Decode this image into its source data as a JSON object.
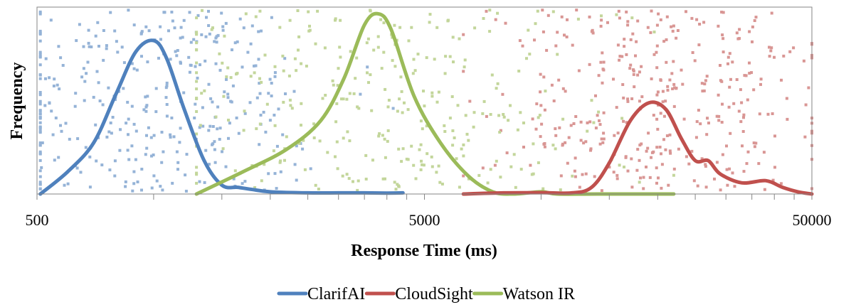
{
  "chart_data": {
    "type": "scatter",
    "xlabel": "Response Time (ms)",
    "ylabel": "Frequency",
    "x_scale": "log",
    "xlim": [
      500,
      50000
    ],
    "x_ticks": [
      500,
      5000,
      50000
    ],
    "x_tick_labels": [
      "500",
      "5000",
      "50000"
    ],
    "grid": false,
    "legend_position": "bottom-center",
    "series": [
      {
        "name": "ClarifAI",
        "color": "#4f81bd",
        "point_color": "#95b3d7",
        "x_range": [
          510,
          4400
        ],
        "scatter_center": 1000,
        "scatter_count": 360,
        "density_curve": [
          [
            510,
            0.0
          ],
          [
            600,
            0.1
          ],
          [
            700,
            0.23
          ],
          [
            800,
            0.45
          ],
          [
            900,
            0.64
          ],
          [
            1000,
            0.69
          ],
          [
            1080,
            0.61
          ],
          [
            1200,
            0.38
          ],
          [
            1350,
            0.15
          ],
          [
            1500,
            0.04
          ],
          [
            1650,
            0.03
          ],
          [
            1800,
            0.02
          ],
          [
            2000,
            0.01
          ],
          [
            2500,
            0.005
          ],
          [
            3000,
            0.005
          ],
          [
            3500,
            0.005
          ],
          [
            4000,
            0.004
          ],
          [
            4400,
            0.005
          ]
        ]
      },
      {
        "name": "CloudSight",
        "color": "#c0504d",
        "point_color": "#d99694",
        "x_range": [
          6300,
          50000
        ],
        "scatter_center": 20000,
        "scatter_count": 370,
        "density_curve": [
          [
            6300,
            0.0
          ],
          [
            8000,
            0.005
          ],
          [
            10000,
            0.006
          ],
          [
            12000,
            0.005
          ],
          [
            13500,
            0.03
          ],
          [
            15000,
            0.14
          ],
          [
            17000,
            0.33
          ],
          [
            19000,
            0.41
          ],
          [
            21000,
            0.38
          ],
          [
            23000,
            0.25
          ],
          [
            25000,
            0.15
          ],
          [
            27000,
            0.15
          ],
          [
            29000,
            0.09
          ],
          [
            33000,
            0.05
          ],
          [
            38000,
            0.06
          ],
          [
            42000,
            0.03
          ],
          [
            46000,
            0.01
          ],
          [
            50000,
            0.0
          ]
        ]
      },
      {
        "name": "Watson IR",
        "color": "#9bbb59",
        "point_color": "#c3d69b",
        "x_range": [
          1290,
          22000
        ],
        "scatter_center": 3700,
        "scatter_count": 320,
        "density_curve": [
          [
            1290,
            0.0
          ],
          [
            1700,
            0.1
          ],
          [
            2200,
            0.2
          ],
          [
            2700,
            0.33
          ],
          [
            3100,
            0.52
          ],
          [
            3500,
            0.76
          ],
          [
            3800,
            0.81
          ],
          [
            4100,
            0.74
          ],
          [
            4700,
            0.44
          ],
          [
            5500,
            0.23
          ],
          [
            6500,
            0.08
          ],
          [
            7500,
            0.01
          ],
          [
            8500,
            0.0
          ],
          [
            10000,
            0.01
          ],
          [
            11000,
            0.0
          ],
          [
            14000,
            0.0
          ],
          [
            22000,
            0.0
          ]
        ]
      }
    ]
  }
}
